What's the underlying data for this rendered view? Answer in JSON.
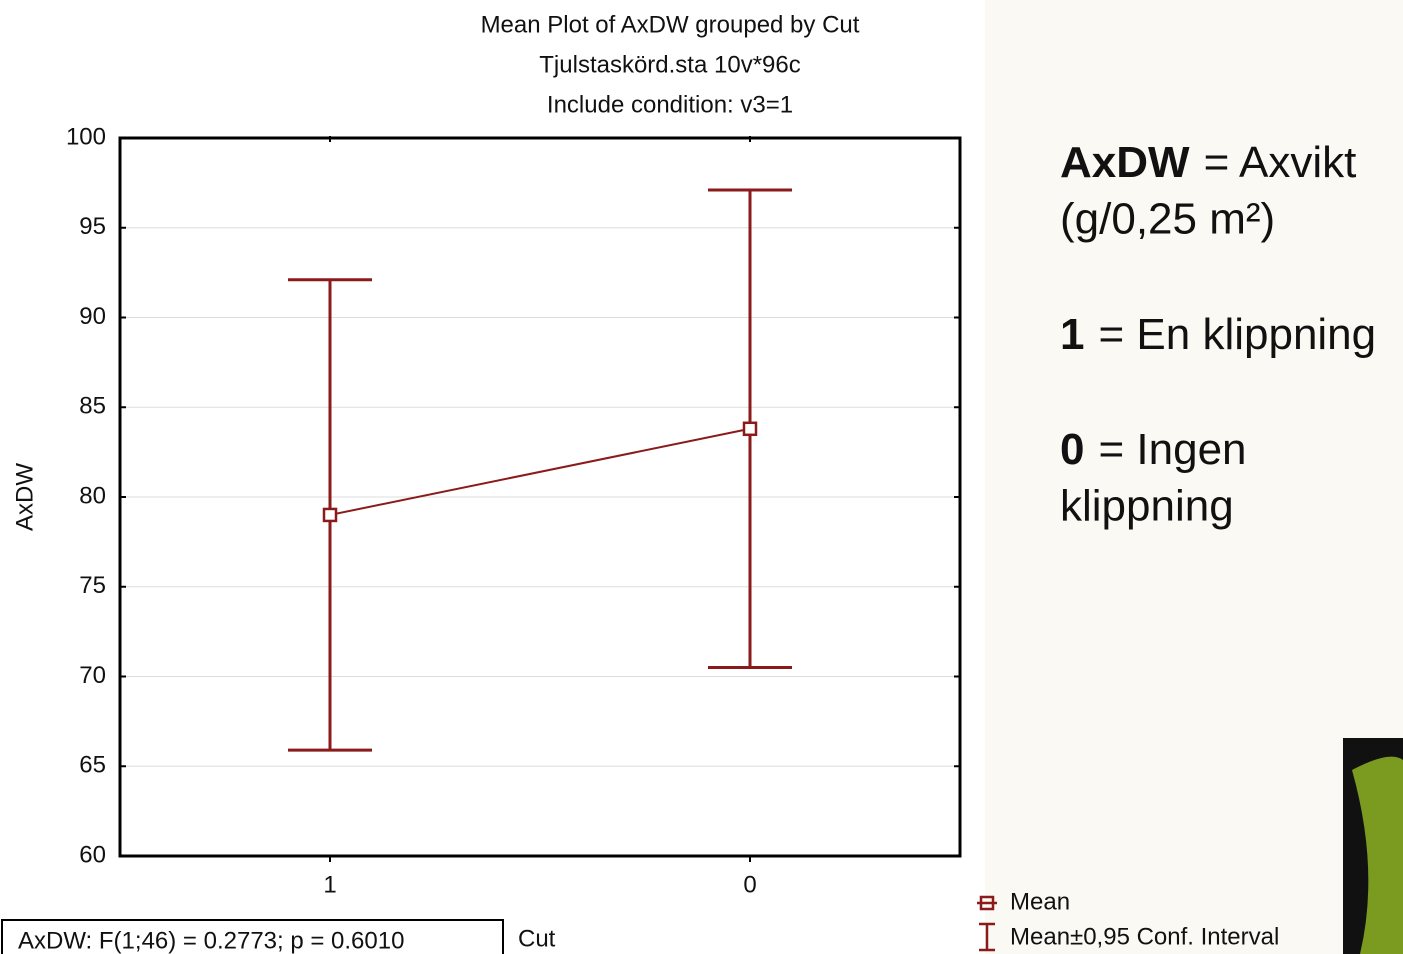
{
  "chart_data": {
    "type": "line",
    "title": "Mean Plot of AxDW grouped by  Cut",
    "subtitle": "Tjulstaskörd.sta 10v*96c",
    "condition": "Include condition: v3=1",
    "xlabel": "Cut",
    "ylabel": "AxDW",
    "categories": [
      "1",
      "0"
    ],
    "series": [
      {
        "name": "Mean",
        "color": "#8b1a1a",
        "values": [
          79.0,
          83.8
        ],
        "errors": [
          13.1,
          13.3
        ],
        "error_name": "Mean±0,95 Conf. Interval"
      }
    ],
    "ylim": [
      60,
      100
    ],
    "yticks": [
      60,
      65,
      70,
      75,
      80,
      85,
      90,
      95,
      100
    ],
    "grid": true,
    "stat": "AxDW:   F(1;46) = 0.2773; p = 0.6010",
    "notes": [
      {
        "key": "AxDW",
        "text": "= Axvikt",
        "text2": "(g/0,25 m²)"
      },
      {
        "key": "1",
        "text": "= En klippning"
      },
      {
        "key": "0",
        "text": "= Ingen",
        "text2": "klippning"
      }
    ]
  }
}
